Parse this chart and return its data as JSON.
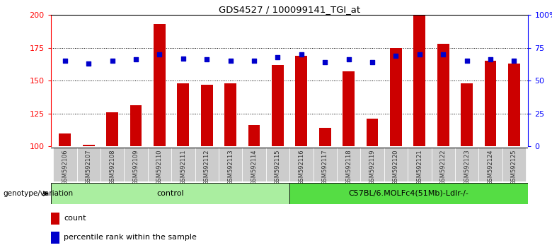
{
  "title": "GDS4527 / 100099141_TGI_at",
  "samples": [
    "GSM592106",
    "GSM592107",
    "GSM592108",
    "GSM592109",
    "GSM592110",
    "GSM592111",
    "GSM592112",
    "GSM592113",
    "GSM592114",
    "GSM592115",
    "GSM592116",
    "GSM592117",
    "GSM592118",
    "GSM592119",
    "GSM592120",
    "GSM592121",
    "GSM592122",
    "GSM592123",
    "GSM592124",
    "GSM592125"
  ],
  "count_values": [
    110,
    101,
    126,
    131,
    193,
    148,
    147,
    148,
    116,
    162,
    169,
    114,
    157,
    121,
    175,
    200,
    178,
    148,
    165,
    163
  ],
  "percentile_values": [
    65,
    63,
    65,
    66,
    70,
    67,
    66,
    65,
    65,
    68,
    70,
    64,
    66,
    64,
    69,
    70,
    70,
    65,
    66,
    65
  ],
  "count_baseline": 100,
  "ylim_left": [
    100,
    200
  ],
  "ylim_right": [
    0,
    100
  ],
  "yticks_left": [
    100,
    125,
    150,
    175,
    200
  ],
  "yticks_right": [
    0,
    25,
    50,
    75,
    100
  ],
  "ytick_labels_left": [
    "100",
    "125",
    "150",
    "175",
    "200"
  ],
  "ytick_labels_right": [
    "0",
    "25",
    "50",
    "75",
    "100%"
  ],
  "bar_color": "#cc0000",
  "dot_color": "#0000cc",
  "control_group_count": 10,
  "treatment_group_count": 10,
  "control_label": "control",
  "treatment_label": "C57BL/6.MOLFc4(51Mb)-Ldlr-/-",
  "control_color": "#aaeea0",
  "treatment_color": "#55dd44",
  "genotype_label": "genotype/variation",
  "legend_count": "count",
  "legend_pct": "percentile rank within the sample",
  "xticklabel_bg": "#cccccc",
  "grid_yticks": [
    125,
    150,
    175
  ]
}
